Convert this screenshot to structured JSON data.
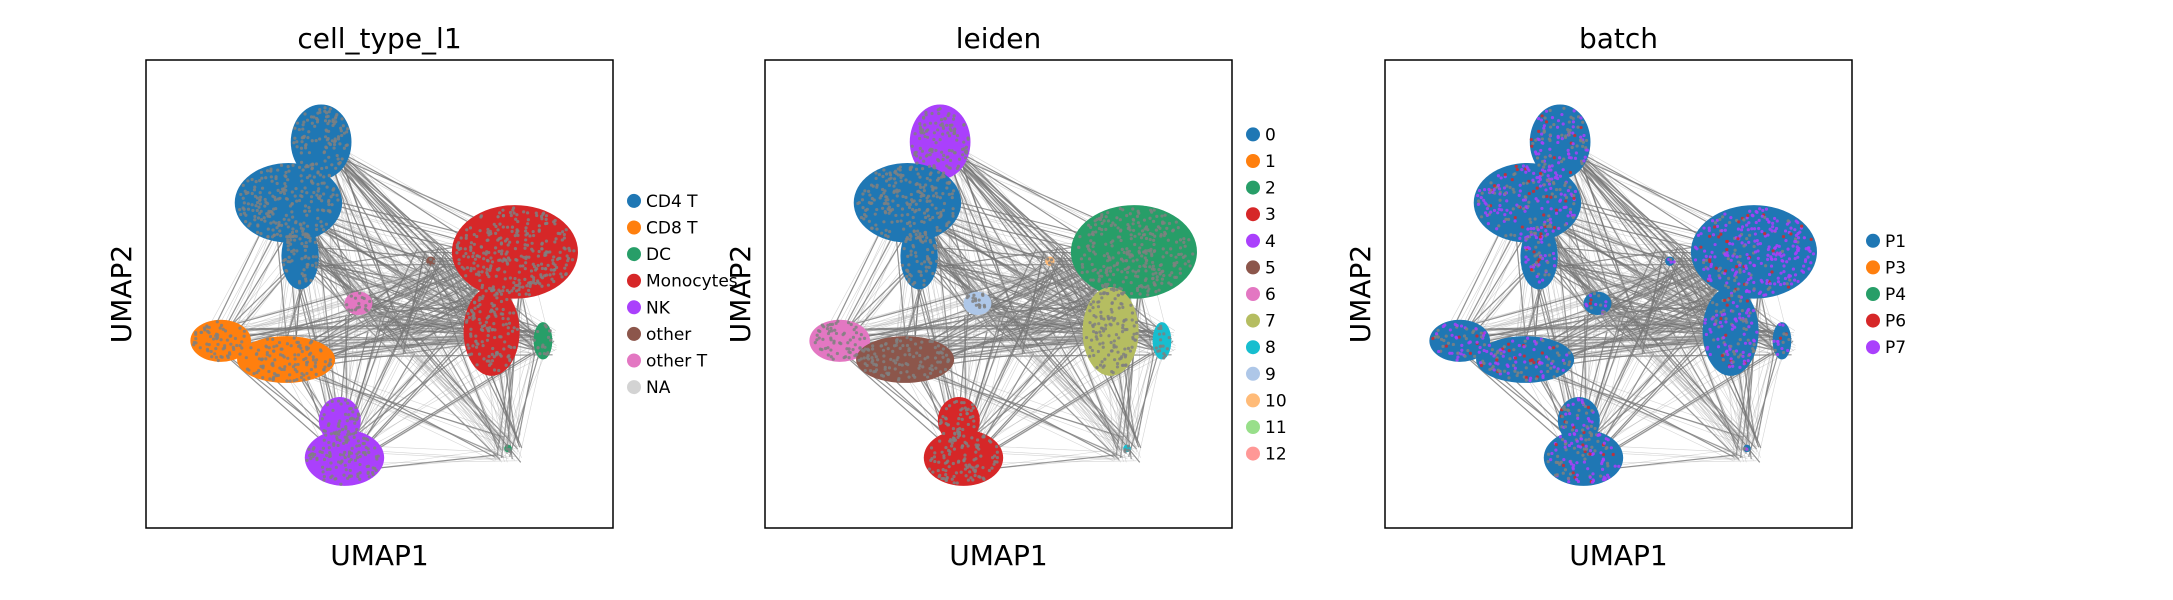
{
  "chart_data": [
    {
      "type": "scatter",
      "title": "cell_type_l1",
      "xlabel": "UMAP1",
      "ylabel": "UMAP2",
      "ticks": "none",
      "grid": false,
      "legend_placement": "right",
      "connections": "gray edges between clusters",
      "categories": [
        {
          "label": "CD4 T",
          "color": "#1f77b4"
        },
        {
          "label": "CD8 T",
          "color": "#ff7f0e"
        },
        {
          "label": "DC",
          "color": "#279e68"
        },
        {
          "label": "Monocytes",
          "color": "#d62728"
        },
        {
          "label": "NK",
          "color": "#aa40fc"
        },
        {
          "label": "other",
          "color": "#8c564b"
        },
        {
          "label": "other T",
          "color": "#e377c2"
        },
        {
          "label": "NA",
          "color": "#d3d3d3"
        }
      ]
    },
    {
      "type": "scatter",
      "title": "leiden",
      "xlabel": "UMAP1",
      "ylabel": "UMAP2",
      "ticks": "none",
      "grid": false,
      "legend_placement": "right",
      "connections": "gray edges between clusters",
      "categories": [
        {
          "label": "0",
          "color": "#1f77b4"
        },
        {
          "label": "1",
          "color": "#ff7f0e"
        },
        {
          "label": "2",
          "color": "#279e68"
        },
        {
          "label": "3",
          "color": "#d62728"
        },
        {
          "label": "4",
          "color": "#aa40fc"
        },
        {
          "label": "5",
          "color": "#8c564b"
        },
        {
          "label": "6",
          "color": "#e377c2"
        },
        {
          "label": "7",
          "color": "#b5bd61"
        },
        {
          "label": "8",
          "color": "#17becf"
        },
        {
          "label": "9",
          "color": "#aec7e8"
        },
        {
          "label": "10",
          "color": "#ffbb78"
        },
        {
          "label": "11",
          "color": "#98df8a"
        },
        {
          "label": "12",
          "color": "#ff9896"
        }
      ]
    },
    {
      "type": "scatter",
      "title": "batch",
      "xlabel": "UMAP1",
      "ylabel": "UMAP2",
      "ticks": "none",
      "grid": false,
      "legend_placement": "right",
      "connections": "gray edges between clusters",
      "categories": [
        {
          "label": "P1",
          "color": "#1f77b4"
        },
        {
          "label": "P3",
          "color": "#ff7f0e"
        },
        {
          "label": "P4",
          "color": "#279e68"
        },
        {
          "label": "P6",
          "color": "#d62728"
        },
        {
          "label": "P7",
          "color": "#aa40fc"
        }
      ]
    }
  ]
}
